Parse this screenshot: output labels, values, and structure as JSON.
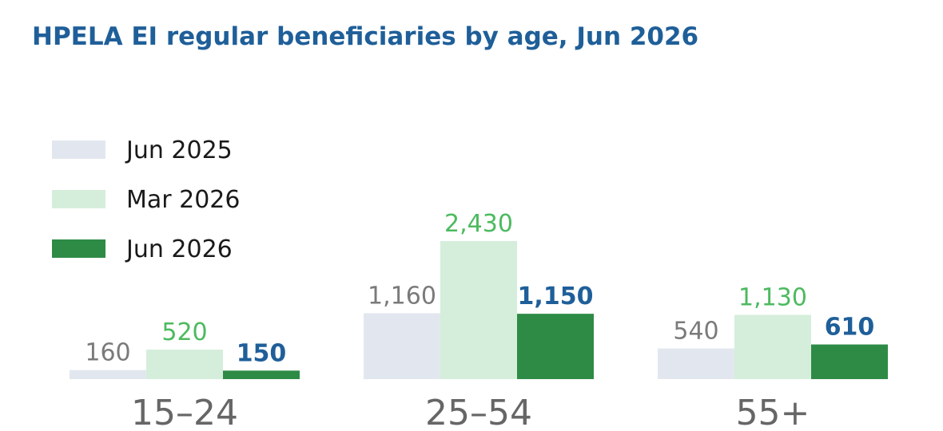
{
  "chart_data": {
    "type": "bar",
    "title": "HPELA EI regular beneficiaries by age, Jun 2026",
    "categories": [
      "15–24",
      "25–54",
      "55+"
    ],
    "series": [
      {
        "name": "Jun 2025",
        "values": [
          160,
          1160,
          540
        ],
        "display": [
          "160",
          "1,160",
          "540"
        ],
        "color": "#e2e7ef",
        "label_color": "#7a7a7a",
        "bold": false
      },
      {
        "name": "Mar 2026",
        "values": [
          520,
          2430,
          1130
        ],
        "display": [
          "520",
          "2,430",
          "1,130"
        ],
        "color": "#d5eedb",
        "label_color": "#4cba5f",
        "bold": false
      },
      {
        "name": "Jun 2026",
        "values": [
          150,
          1150,
          610
        ],
        "display": [
          "150",
          "1,150",
          "610"
        ],
        "color": "#2e8b46",
        "label_color": "#1f5f99",
        "bold": true
      }
    ],
    "ylim": [
      0,
      2430
    ],
    "legend_position": "top-left",
    "grid": false
  }
}
